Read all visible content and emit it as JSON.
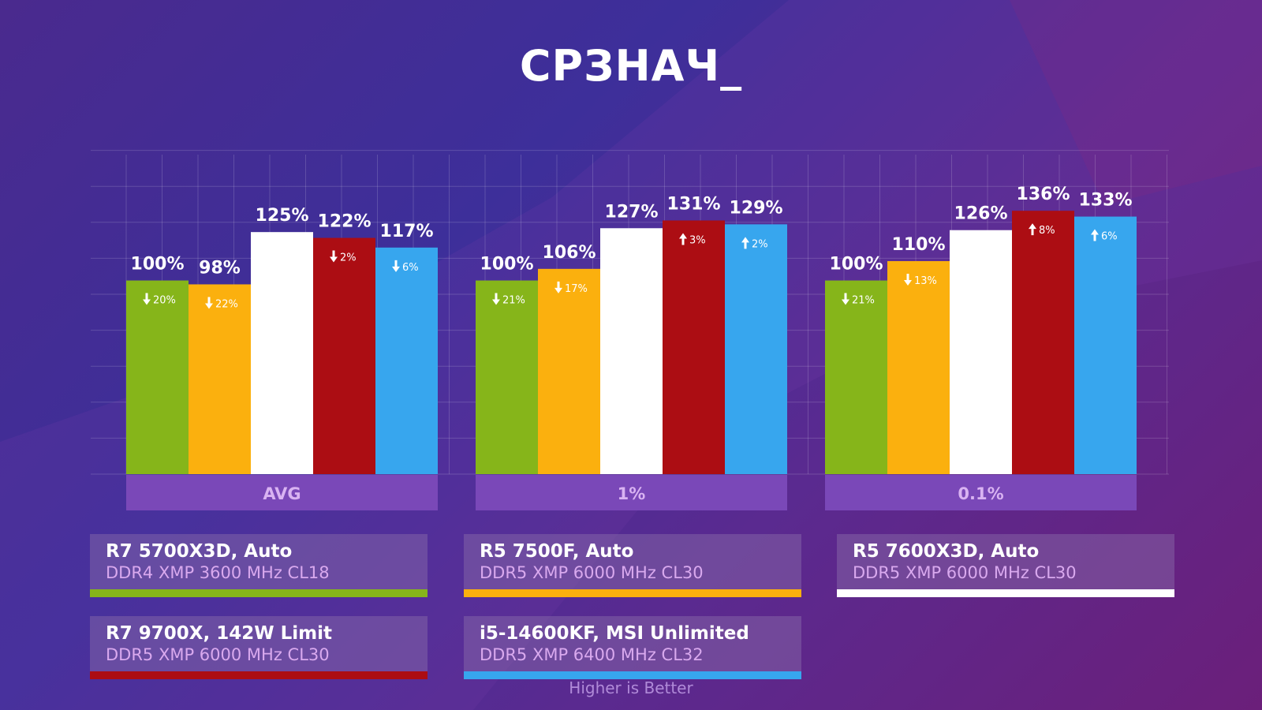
{
  "title": "СРЗНАЧ_",
  "footer_note": "Higher is Better",
  "colors": {
    "green": "#86b51a",
    "orange": "#fbb00e",
    "white": "#ffffff",
    "red": "#ac0d13",
    "blue": "#37a6ee",
    "group_label_bg": "#7a48b8",
    "group_label_text": "#d9b3f2"
  },
  "legend": [
    {
      "cpu": "R7 5700X3D, Auto",
      "memory": "DDR4 XMP 3600 MHz CL18",
      "color": "#86b51a"
    },
    {
      "cpu": "R5 7500F, Auto",
      "memory": "DDR5 XMP 6000 MHz CL30",
      "color": "#fbb00e"
    },
    {
      "cpu": "R5 7600X3D, Auto",
      "memory": "DDR5 XMP 6000 MHz CL30",
      "color": "#ffffff"
    },
    {
      "cpu": "R7 9700X, 142W Limit",
      "memory": "DDR5 XMP 6000 MHz CL30",
      "color": "#ac0d13"
    },
    {
      "cpu": "i5-14600KF, MSI Unlimited",
      "memory": "DDR5 XMP 6400 MHz CL32",
      "color": "#37a6ee"
    }
  ],
  "chart_data": {
    "type": "bar",
    "title": "СРЗНАЧ_",
    "categories": [
      "AVG",
      "1%",
      "0.1%"
    ],
    "series": [
      {
        "name": "R7 5700X3D, Auto",
        "values": [
          100,
          100,
          100
        ],
        "value_labels": [
          "100%",
          "100%",
          "100%"
        ],
        "deltas": [
          {
            "dir": "down",
            "label": "20%"
          },
          {
            "dir": "down",
            "label": "21%"
          },
          {
            "dir": "down",
            "label": "21%"
          }
        ]
      },
      {
        "name": "R5 7500F, Auto",
        "values": [
          98,
          106,
          110
        ],
        "value_labels": [
          "98%",
          "106%",
          "110%"
        ],
        "deltas": [
          {
            "dir": "down",
            "label": "22%"
          },
          {
            "dir": "down",
            "label": "17%"
          },
          {
            "dir": "down",
            "label": "13%"
          }
        ]
      },
      {
        "name": "R5 7600X3D, Auto",
        "values": [
          125,
          127,
          126
        ],
        "value_labels": [
          "125%",
          "127%",
          "126%"
        ],
        "deltas": [
          null,
          null,
          null
        ]
      },
      {
        "name": "R7 9700X, 142W Limit",
        "values": [
          122,
          131,
          136
        ],
        "value_labels": [
          "122%",
          "131%",
          "136%"
        ],
        "deltas": [
          {
            "dir": "down",
            "label": "2%"
          },
          {
            "dir": "up",
            "label": "3%"
          },
          {
            "dir": "up",
            "label": "8%"
          }
        ]
      },
      {
        "name": "i5-14600KF, MSI Unlimited",
        "values": [
          117,
          129,
          133
        ],
        "value_labels": [
          "117%",
          "129%",
          "133%"
        ],
        "deltas": [
          {
            "dir": "down",
            "label": "6%"
          },
          {
            "dir": "up",
            "label": "2%"
          },
          {
            "dir": "up",
            "label": "6%"
          }
        ]
      }
    ],
    "ylim": [
      0,
      165
    ],
    "grid": true,
    "legend_position": "bottom"
  }
}
